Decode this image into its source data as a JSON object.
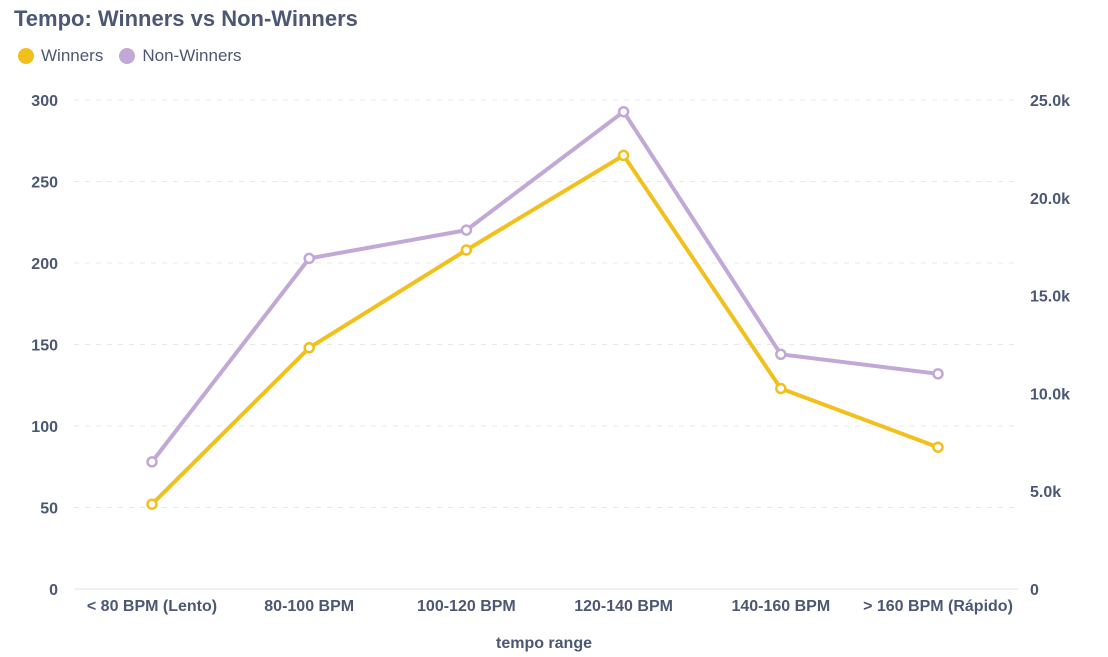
{
  "chart_data": {
    "type": "line",
    "title": "Tempo: Winners vs Non-Winners",
    "xlabel": "tempo range",
    "categories": [
      "< 80 BPM (Lento)",
      "80-100 BPM",
      "100-120 BPM",
      "120-140 BPM",
      "140-160 BPM",
      "> 160 BPM (Rápido)"
    ],
    "y_left": {
      "ylim": [
        0,
        300
      ],
      "ticks": [
        0,
        50,
        100,
        150,
        200,
        250,
        300
      ],
      "tick_labels": [
        "0",
        "50",
        "100",
        "150",
        "200",
        "250",
        "300"
      ]
    },
    "y_right": {
      "ylim": [
        0,
        25000
      ],
      "ticks": [
        0,
        5000,
        10000,
        15000,
        20000,
        25000
      ],
      "tick_labels": [
        "0",
        "5.0k",
        "10.0k",
        "15.0k",
        "20.0k",
        "25.0k"
      ]
    },
    "grid": true,
    "legend_position": "top-left",
    "series": [
      {
        "name": "Winners",
        "axis": "left",
        "color": "#f2c01d",
        "values": [
          52,
          148,
          208,
          266,
          123,
          87
        ]
      },
      {
        "name": "Non-Winners",
        "axis": "right",
        "color": "#c2a8d6",
        "values": [
          6500,
          16900,
          18350,
          24400,
          12000,
          11000
        ]
      }
    ]
  }
}
